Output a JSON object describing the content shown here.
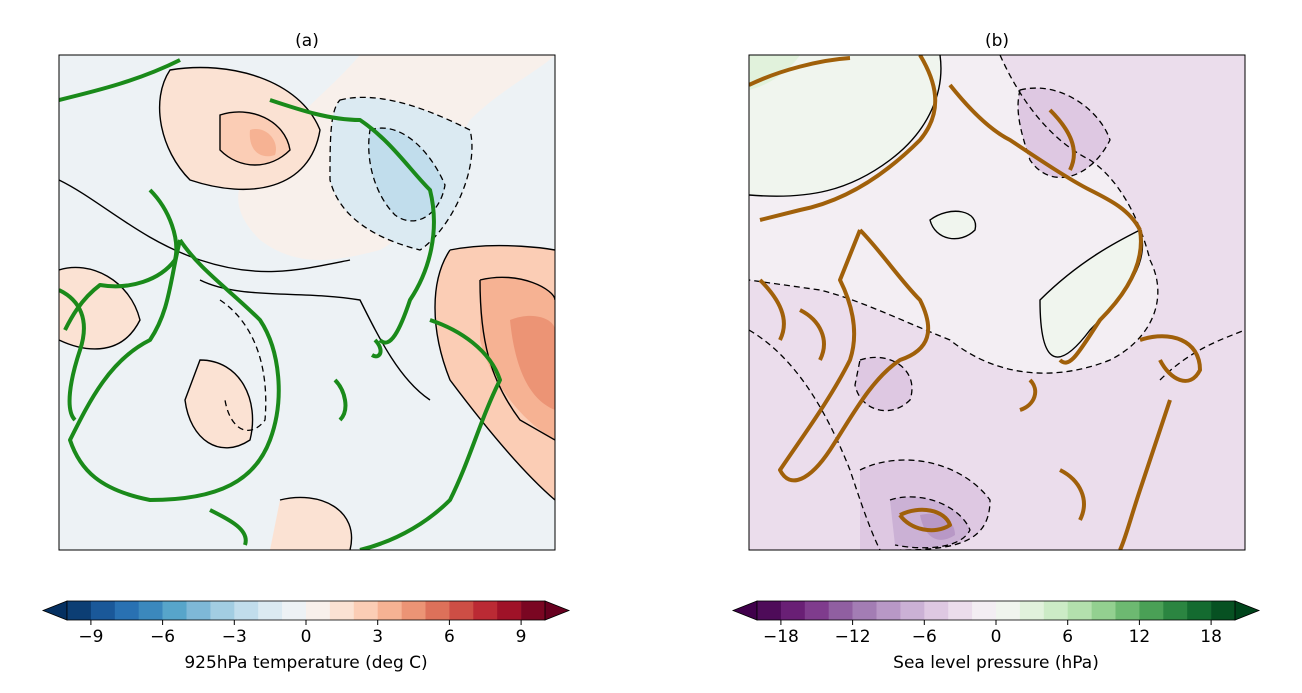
{
  "panels": [
    {
      "title": "(a)",
      "colorbar": {
        "label": "925hPa temperature (deg C)",
        "bins": [
          -10,
          -9,
          -8,
          -7,
          -6,
          -5,
          -4,
          -3,
          -2,
          -1,
          0,
          1,
          2,
          3,
          4,
          5,
          6,
          7,
          8,
          9,
          10
        ],
        "colors": [
          "#0c3e74",
          "#1a5899",
          "#2971b2",
          "#3b88bd",
          "#57a5ca",
          "#7eb8d7",
          "#a2cde2",
          "#c1ddec",
          "#dbeaf2",
          "#edf2f5",
          "#f8f0eb",
          "#fbe2d3",
          "#fbcdb5",
          "#f6b293",
          "#ec9475",
          "#dd715a",
          "#cd4e45",
          "#bb2a34",
          "#9f1228",
          "#7a0622"
        ],
        "under_color": "#053061",
        "over_color": "#67001f",
        "ticks": [
          {
            "value": -9,
            "label": "−9"
          },
          {
            "value": -6,
            "label": "−6"
          },
          {
            "value": -3,
            "label": "−3"
          },
          0,
          3,
          6,
          9
        ]
      }
    },
    {
      "title": "(b)",
      "colorbar": {
        "label": "Sea level pressure (hPa)",
        "bins": [
          -20,
          -18,
          -16,
          -14,
          -12,
          -10,
          -8,
          -6,
          -4,
          -2,
          0,
          2,
          4,
          6,
          8,
          10,
          12,
          14,
          16,
          18,
          20
        ],
        "colors": [
          "#4e0b59",
          "#691f75",
          "#7f3c8d",
          "#905fa1",
          "#a37db4",
          "#b898c6",
          "#cbb1d5",
          "#dec8e2",
          "#ebddec",
          "#f3eef3",
          "#f0f5ee",
          "#e1f2dc",
          "#ccebc6",
          "#b3e0ad",
          "#93d090",
          "#6db971",
          "#4aa056",
          "#2b8541",
          "#146b30",
          "#075122"
        ],
        "under_color": "#40004b",
        "over_color": "#00441b",
        "ticks": [
          {
            "value": -18,
            "label": "−18"
          },
          {
            "value": -12,
            "label": "−12"
          },
          {
            "value": -6,
            "label": "−6"
          },
          0,
          6,
          12,
          18
        ]
      }
    }
  ]
}
